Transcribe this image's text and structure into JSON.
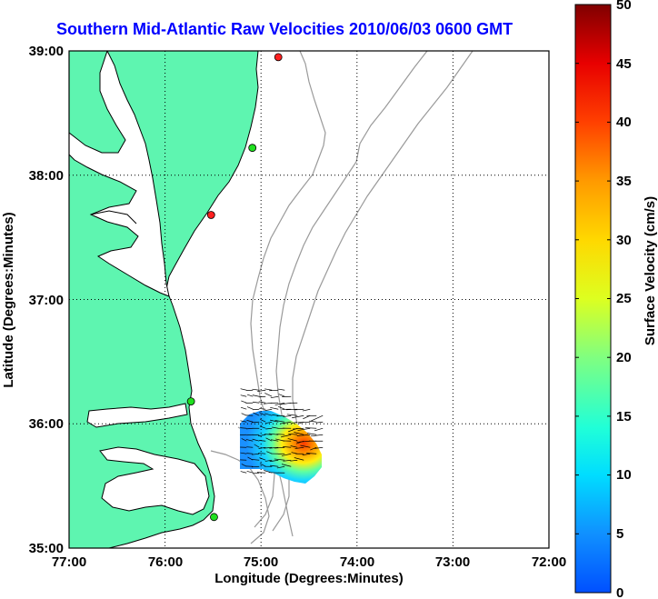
{
  "title": "Southern Mid-Atlantic Raw Velocities 2010/06/03 0600 GMT",
  "xlabel": "Longitude (Degrees:Minutes)",
  "ylabel": "Latitude (Degrees:Minutes)",
  "colorbar_label": "Surface Velocity (cm/s)",
  "x_ticks": [
    "77:00",
    "76:00",
    "75:00",
    "74:00",
    "73:00",
    "72:00"
  ],
  "y_ticks": [
    "39:00",
    "38:00",
    "37:00",
    "36:00",
    "35:00"
  ],
  "colorbar_ticks": [
    "50",
    "45",
    "40",
    "35",
    "30",
    "25",
    "20",
    "15",
    "10",
    "5",
    "0"
  ],
  "colors": {
    "land": "#5ef5b0",
    "coastline": "#000000",
    "bathymetry": "#9a9a9a",
    "title": "#0000ff"
  },
  "chart_data": {
    "type": "map",
    "title": "Southern Mid-Atlantic Raw Velocities 2010/06/03 0600 GMT",
    "xlabel": "Longitude (Degrees:Minutes)",
    "ylabel": "Latitude (Degrees:Minutes)",
    "xlim": [
      -77.0,
      -72.0
    ],
    "ylim": [
      35.0,
      39.0
    ],
    "colorbar": {
      "label": "Surface Velocity (cm/s)",
      "range": [
        0,
        50
      ],
      "colormap": "jet"
    },
    "grid": true,
    "stations": [
      {
        "lon": -74.82,
        "lat": 38.95,
        "status": "red"
      },
      {
        "lon": -75.09,
        "lat": 38.22,
        "status": "green"
      },
      {
        "lon": -75.52,
        "lat": 37.68,
        "status": "red"
      },
      {
        "lon": -75.73,
        "lat": 36.18,
        "status": "green"
      },
      {
        "lon": -75.49,
        "lat": 35.25,
        "status": "green"
      }
    ],
    "velocity_field_extent": {
      "lon": [
        -75.17,
        -74.3
      ],
      "lat": [
        35.6,
        36.3
      ]
    }
  }
}
